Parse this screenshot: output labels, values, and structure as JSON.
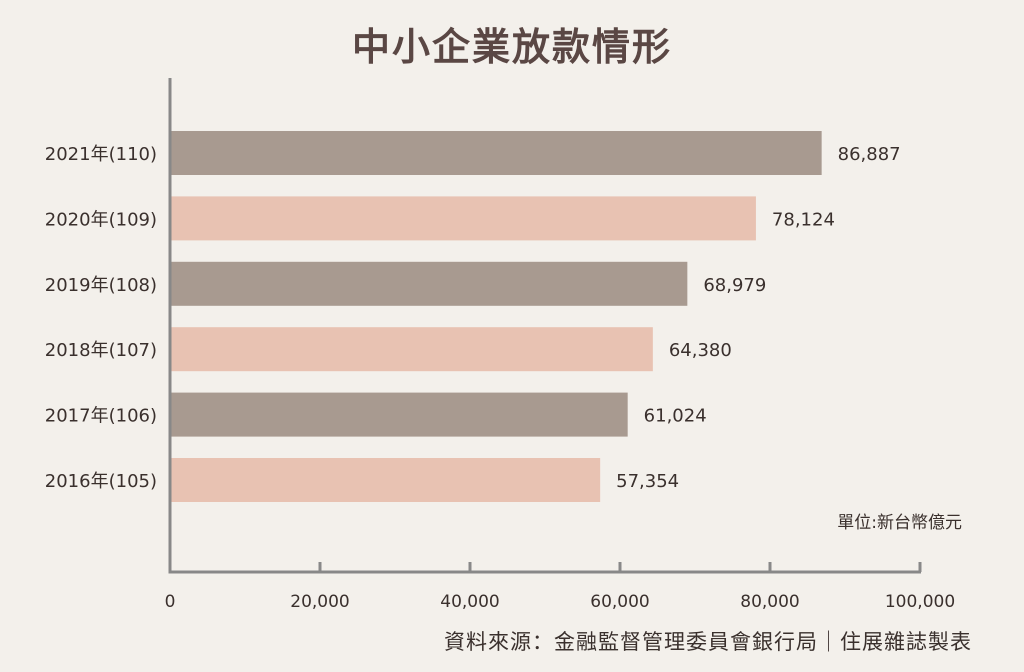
{
  "chart_data": {
    "type": "bar",
    "orientation": "horizontal",
    "title": "中小企業放款情形",
    "categories": [
      "2021年(110)",
      "2020年(109)",
      "2019年(108)",
      "2018年(107)",
      "2017年(106)",
      "2016年(105)"
    ],
    "values": [
      86887,
      78124,
      68979,
      64380,
      61024,
      57354
    ],
    "value_labels": [
      "86,887",
      "78,124",
      "68,979",
      "64,380",
      "61,024",
      "57,354"
    ],
    "bar_colors": [
      "#a89a90",
      "#e8c2b2",
      "#a89a90",
      "#e8c2b2",
      "#a89a90",
      "#e8c2b2"
    ],
    "xlim": [
      0,
      100000
    ],
    "xticks": [
      0,
      20000,
      40000,
      60000,
      80000,
      100000
    ],
    "xtick_labels": [
      "0",
      "20,000",
      "40,000",
      "60,000",
      "80,000",
      "100,000"
    ],
    "unit": "單位:新台幣億元",
    "source": "資料來源：金融監督管理委員會銀行局｜住展雜誌製表",
    "grid": false
  }
}
